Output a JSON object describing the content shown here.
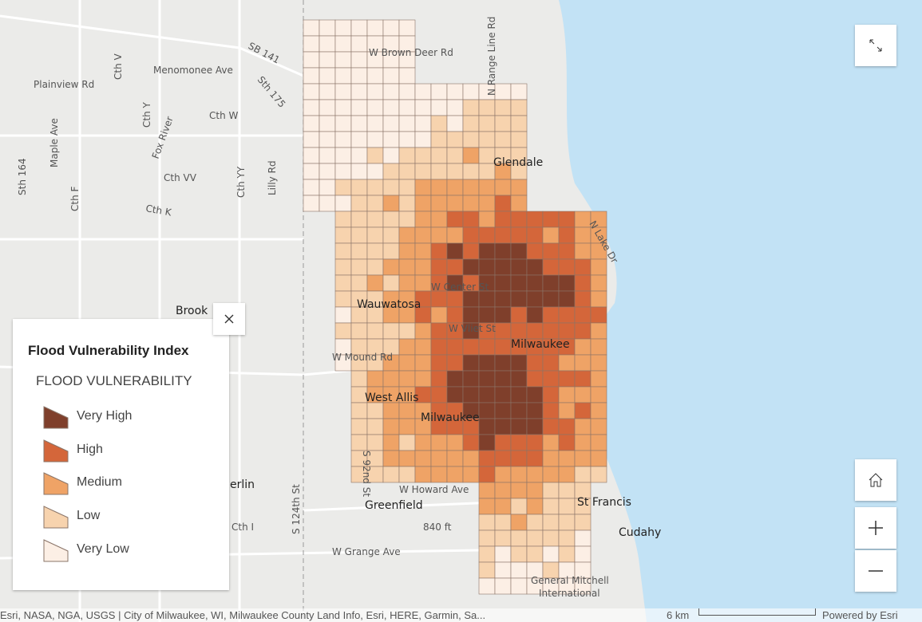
{
  "map_labels": [
    "W Brown Deer Rd",
    "SB 141",
    "Menomonee Ave",
    "Plainview Rd",
    "Cth V",
    "Sth 175",
    "Cth Y",
    "Cth W",
    "Fox River",
    "Maple Ave",
    "Sth 164",
    "Cth F",
    "Cth VV",
    "Cth YY",
    "Lilly Rd",
    "Cth K",
    "Glendale",
    "N Lake Dr",
    "N Range Line Rd",
    "Wauwatosa",
    "W Center St",
    "Brook",
    "Milwaukee",
    "W Vliet St",
    "W Mound Rd",
    "West Allis",
    "Milwaukee",
    "S 92nd St",
    "S 124th St",
    "W Howard Ave",
    "Greenfield",
    "St Francis",
    "840 ft",
    "Cudahy",
    "W Grange Ave",
    "General Mitchell",
    "International",
    "erlin",
    "Cth I"
  ],
  "legend": {
    "title": "Flood Vulnerability Index",
    "field": "FLOOD VULNERABILITY",
    "classes": [
      {
        "label": "Very High",
        "color": "#7f3f2b"
      },
      {
        "label": "High",
        "color": "#d4663a"
      },
      {
        "label": "Medium",
        "color": "#efa366"
      },
      {
        "label": "Low",
        "color": "#f7d3ae"
      },
      {
        "label": "Very Low",
        "color": "#fcefe5"
      }
    ]
  },
  "scale": "6 km",
  "attribution": "Esri, NASA, NGA, USGS | City of Milwaukee, WI, Milwaukee County Land Info, Esri, HERE, Garmin, Sa...",
  "powered": "Powered by Esri"
}
